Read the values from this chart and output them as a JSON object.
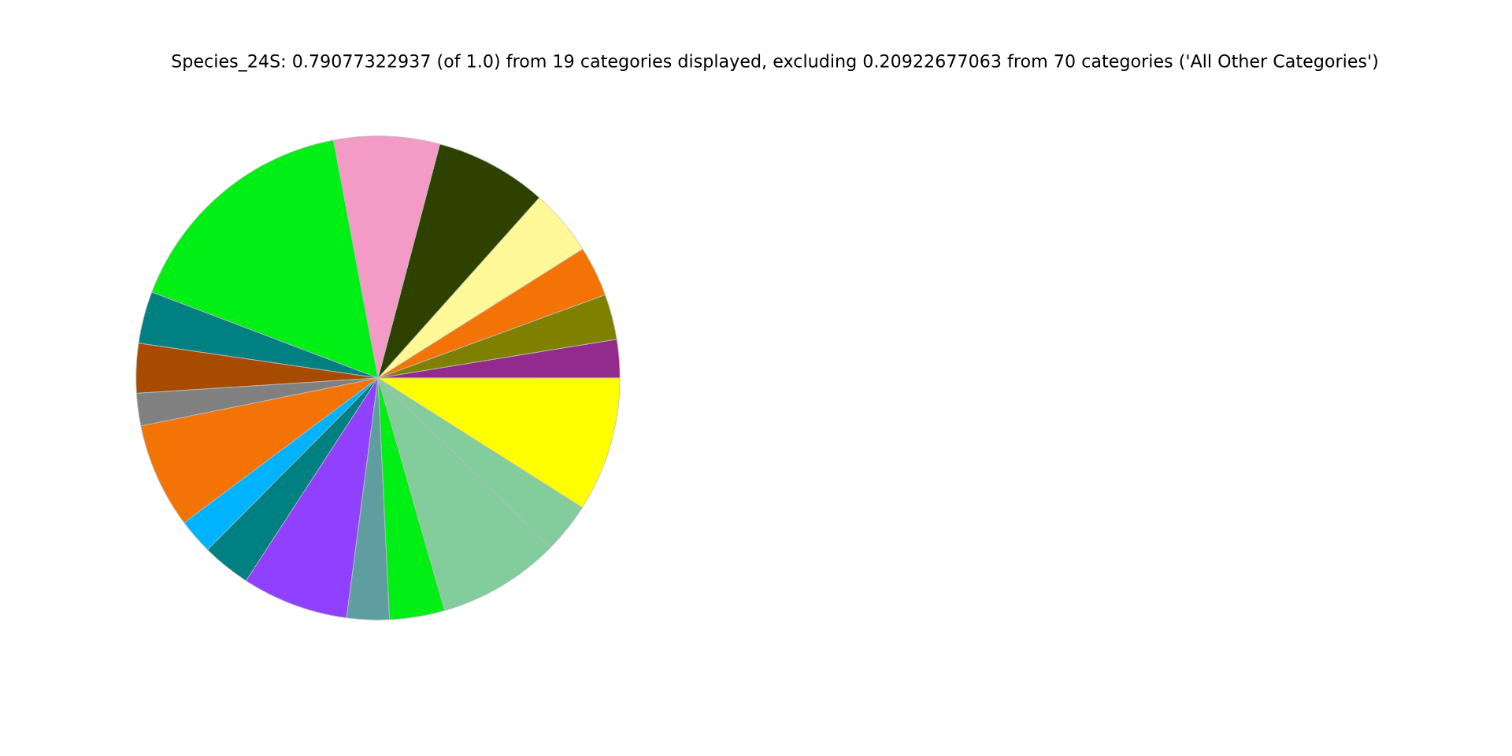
{
  "chart_data": {
    "type": "pie",
    "title": "Species_24S: 0.79077322937 (of 1.0) from 19 categories displayed, excluding 0.20922677063 from 70 categories ('All Other Categories')",
    "categories": [
      null,
      null,
      null,
      null,
      null,
      null,
      null,
      null,
      null,
      null,
      null,
      null,
      null,
      null,
      null,
      null,
      null,
      null,
      null
    ],
    "values": [
      2.56,
      3.03,
      3.36,
      4.44,
      7.5,
      7.06,
      16.28,
      3.47,
      3.31,
      2.17,
      7.03,
      2.36,
      3.25,
      7.11,
      2.83,
      3.69,
      8.17,
      3.39,
      8.99
    ],
    "colors": [
      "#922b8c",
      "#808000",
      "#f37405",
      "#fff897",
      "#2e4200",
      "#f49ac6",
      "#00f015",
      "#008080",
      "#a64b00",
      "#808080",
      "#f37405",
      "#00b3ff",
      "#008080",
      "#9040ff",
      "#5f9ea0",
      "#00f015",
      "#83cc9b",
      "#83cc9b",
      "#ffff00"
    ]
  }
}
